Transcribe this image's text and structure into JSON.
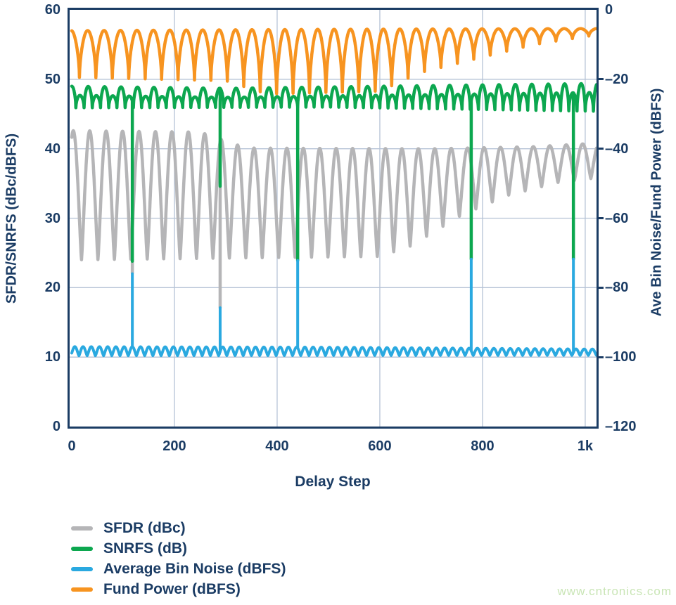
{
  "page": {
    "watermark": "www.cntronics.com",
    "watermark_color": "#c9e5b5",
    "text_color": "#1b3c64",
    "grid_color": "#b6c3d6",
    "axis_color": "#1b3c64"
  },
  "chart_data": {
    "type": "line",
    "title": "",
    "xlabel": "Delay Step",
    "ylabel_left": "SFDR/SNRFS (dBc/dBFS)",
    "ylabel_right": "Ave Bin Noise/Fund Power (dBFS)",
    "x_range": [
      0,
      1022
    ],
    "y_left_range": [
      0,
      60
    ],
    "y_right_range": [
      -120,
      0
    ],
    "grid": true,
    "legend_position": "bottom-left",
    "x_ticks": [
      {
        "value": 0,
        "label": "0"
      },
      {
        "value": 200,
        "label": "200"
      },
      {
        "value": 400,
        "label": "400"
      },
      {
        "value": 600,
        "label": "600"
      },
      {
        "value": 800,
        "label": "800"
      },
      {
        "value": 1000,
        "label": "1k"
      }
    ],
    "y_left_ticks": [
      {
        "value": 60,
        "label": "60"
      },
      {
        "value": 50,
        "label": "50"
      },
      {
        "value": 40,
        "label": "40"
      },
      {
        "value": 30,
        "label": "30"
      },
      {
        "value": 20,
        "label": "20"
      },
      {
        "value": 10,
        "label": "10"
      },
      {
        "value": 0,
        "label": "0"
      }
    ],
    "y_right_ticks": [
      {
        "value": 0,
        "label": "0"
      },
      {
        "value": -20,
        "label": "–20"
      },
      {
        "value": -40,
        "label": "–40"
      },
      {
        "value": -60,
        "label": "–60"
      },
      {
        "value": -80,
        "label": "–80"
      },
      {
        "value": -100,
        "label": "–100"
      },
      {
        "value": -120,
        "label": "–120"
      }
    ],
    "series": [
      {
        "id": "sfdr",
        "name": "SFDR (dBc)",
        "color": "#b5b5b7",
        "axis": "left",
        "model": "scallop",
        "period": 32,
        "dip_phase": 19,
        "exponent": 1.2,
        "stroke": 4.5,
        "top_env": [
          [
            0,
            42.6
          ],
          [
            250,
            42.4
          ],
          [
            340,
            40.1
          ],
          [
            700,
            40.0
          ],
          [
            900,
            40.3
          ],
          [
            1022,
            40.8
          ]
        ],
        "bottom_env": [
          [
            0,
            24.0
          ],
          [
            600,
            24.5
          ],
          [
            660,
            26.0
          ],
          [
            760,
            30.5
          ],
          [
            850,
            33.3
          ],
          [
            950,
            35.2
          ],
          [
            1022,
            35.8
          ]
        ]
      },
      {
        "id": "snrfs",
        "name": "SNRFS (dB)",
        "color": "#0ca74f",
        "axis": "left",
        "model": "scallop",
        "period": 16,
        "dip_phase": 8,
        "exponent": 0.55,
        "stroke": 4.5,
        "alt_top_drop": 1.3,
        "top_env": [
          [
            0,
            49.0
          ],
          [
            300,
            48.7
          ],
          [
            600,
            49.0
          ],
          [
            1022,
            49.4
          ]
        ],
        "bottom_env": [
          [
            0,
            45.9
          ],
          [
            500,
            46.0
          ],
          [
            1022,
            45.4
          ]
        ]
      },
      {
        "id": "fund",
        "name": "Fund Power (dBFS)",
        "color": "#f79420",
        "axis": "right",
        "model": "scallop",
        "period": 32,
        "dip_phase": 15,
        "exponent": 0.6,
        "stroke": 4.5,
        "top_env": [
          [
            0,
            -6.0
          ],
          [
            500,
            -5.6
          ],
          [
            1022,
            -5.4
          ]
        ],
        "bottom_env": [
          [
            0,
            -19.4
          ],
          [
            300,
            -20.4
          ],
          [
            380,
            -24.2
          ],
          [
            600,
            -23.4
          ],
          [
            680,
            -18.0
          ],
          [
            800,
            -13.6
          ],
          [
            900,
            -10.0
          ],
          [
            1022,
            -7.2
          ]
        ]
      },
      {
        "id": "noise",
        "name": "Average Bin Noise (dBFS)",
        "color": "#2aa9e0",
        "axis": "right",
        "model": "bumps",
        "period": 16,
        "dip_phase": -2,
        "exponent": 1.3,
        "stroke": 4,
        "base_env": [
          [
            0,
            -99.6
          ],
          [
            1022,
            -99.5
          ]
        ],
        "amp_env": [
          [
            0,
            2.6
          ],
          [
            500,
            2.4
          ],
          [
            1022,
            1.8
          ]
        ]
      }
    ],
    "spikes": [
      {
        "delay": 118,
        "series": "snrfs",
        "to": 23.8
      },
      {
        "delay": 118,
        "series": "sfdr",
        "from": 24.0,
        "to": 22.1
      },
      {
        "delay": 118,
        "series": "noise",
        "to": -76.0
      },
      {
        "delay": 289,
        "series": "sfdr",
        "to": 17.1
      },
      {
        "delay": 289,
        "series": "snrfs",
        "to": 34.6
      },
      {
        "delay": 289,
        "series": "noise",
        "to": -85.8
      },
      {
        "delay": 440,
        "series": "snrfs",
        "to": 23.9
      },
      {
        "delay": 440,
        "series": "noise",
        "to": -72.2
      },
      {
        "delay": 778,
        "series": "snrfs",
        "to": 24.1
      },
      {
        "delay": 778,
        "series": "noise",
        "to": -71.8
      },
      {
        "delay": 977,
        "series": "snrfs",
        "to": 24.1
      },
      {
        "delay": 977,
        "series": "noise",
        "to": -71.8
      }
    ]
  },
  "legend": {
    "items": [
      {
        "label": "SFDR (dBc)",
        "color": "#b5b5b7"
      },
      {
        "label": "SNRFS (dB)",
        "color": "#0ca74f"
      },
      {
        "label": "Average Bin Noise (dBFS)",
        "color": "#2aa9e0"
      },
      {
        "label": "Fund Power (dBFS)",
        "color": "#f79420"
      }
    ]
  }
}
